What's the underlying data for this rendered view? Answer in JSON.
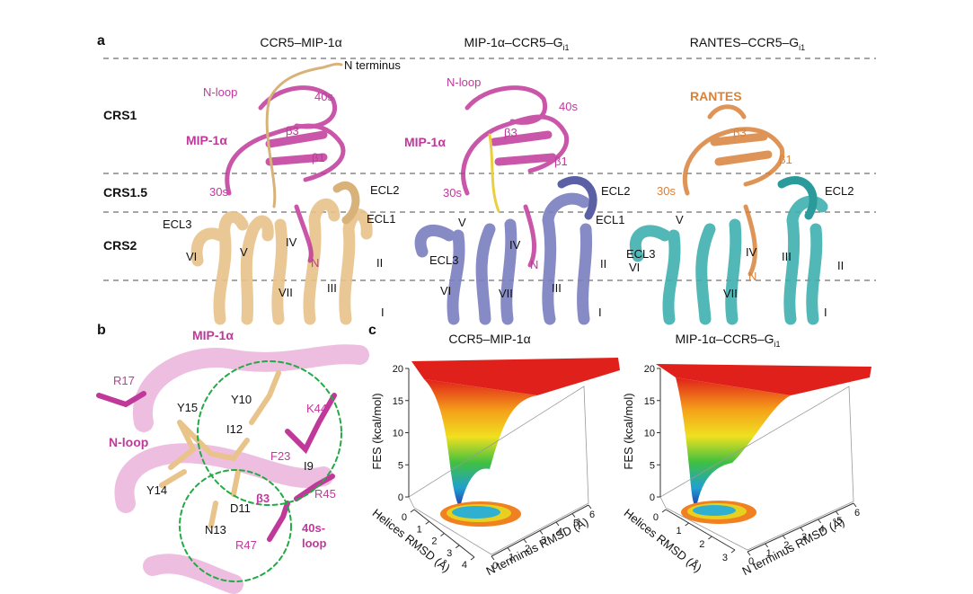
{
  "panel_a": {
    "label": "a",
    "titles": [
      {
        "text": "CCR5–MIP-1α"
      },
      {
        "text": "MIP-1α–CCR5–G",
        "sub": "i1"
      },
      {
        "text": "RANTES–CCR5–G",
        "sub": "i1"
      }
    ],
    "rows": [
      "CRS1",
      "CRS1.5",
      "CRS2"
    ],
    "structures": [
      [
        "N terminus",
        "N-loop",
        "40s",
        "MIP-1α",
        "β3",
        "β1",
        "30s",
        "ECL2",
        "ECL3",
        "ECL1",
        "VI",
        "V",
        "IV",
        "N",
        "VII",
        "III",
        "II",
        "I"
      ],
      [
        "N-loop",
        "40s",
        "MIP-1α",
        "β3",
        "β1",
        "30s",
        "ECL2",
        "ECL1",
        "V",
        "IV",
        "ECL3",
        "N",
        "II",
        "VI",
        "VII",
        "III",
        "I"
      ],
      [
        "RANTES",
        "β3",
        "β1",
        "30s",
        "ECL2",
        "V",
        "IV",
        "ECL3",
        "III",
        "VI",
        "II",
        "N",
        "VII",
        "I"
      ]
    ]
  },
  "panel_b": {
    "label": "b",
    "labels": [
      "MIP-1α",
      "R17",
      "Y15",
      "Y10",
      "K44",
      "I12",
      "N-loop",
      "F23",
      "I9",
      "Y14",
      "D11",
      "β3",
      "R45",
      "N13",
      "40s-",
      "loop",
      "R47"
    ]
  },
  "panel_c": {
    "label": "c",
    "plots": [
      {
        "title": {
          "text": "CCR5–MIP-1α"
        },
        "z_label": "FES (kcal/mol)",
        "zticks": [
          0,
          5,
          10,
          15,
          20
        ],
        "x_label": "Helices RMSD (Å)",
        "xticks": [
          0,
          1,
          2,
          3,
          4
        ],
        "y_label": "N terminus RMSD (Å)",
        "yticks": [
          0,
          1,
          2,
          3,
          4,
          5,
          6
        ]
      },
      {
        "title": {
          "text": "MIP-1α–CCR5–G",
          "sub": "i1"
        },
        "z_label": "FES (kcal/mol)",
        "zticks": [
          0,
          5,
          10,
          15,
          20
        ],
        "x_label": "Helices RMSD (Å)",
        "xticks": [
          0,
          1,
          2,
          3
        ],
        "y_label": "N terminus RMSD (Å)",
        "yticks": [
          0,
          1,
          2,
          3,
          4,
          5,
          6
        ]
      }
    ]
  }
}
